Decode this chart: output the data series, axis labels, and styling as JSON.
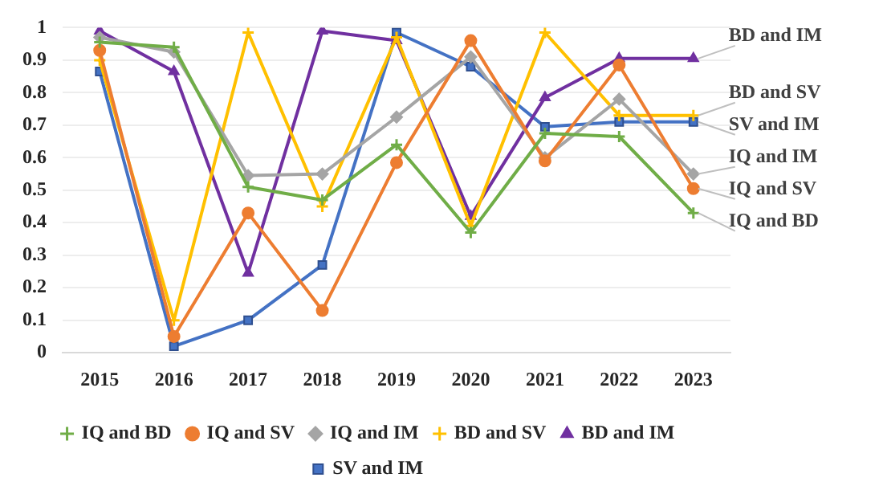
{
  "chart_data": {
    "type": "line",
    "categories": [
      "2015",
      "2016",
      "2017",
      "2018",
      "2019",
      "2020",
      "2021",
      "2022",
      "2023"
    ],
    "series": [
      {
        "name": "IQ and BD",
        "color": "#70ad47",
        "marker": "cross",
        "values": [
          0.955,
          0.94,
          0.51,
          0.47,
          0.64,
          0.37,
          0.675,
          0.665,
          0.43
        ]
      },
      {
        "name": "IQ and SV",
        "color": "#ed7d31",
        "marker": "circle",
        "values": [
          0.93,
          0.05,
          0.43,
          0.13,
          0.585,
          0.96,
          0.59,
          0.885,
          0.505
        ]
      },
      {
        "name": "IQ and IM",
        "color": "#a5a5a5",
        "marker": "diamond",
        "values": [
          0.97,
          0.925,
          0.545,
          0.55,
          0.725,
          0.91,
          0.6,
          0.78,
          0.55
        ]
      },
      {
        "name": "BD and SV",
        "color": "#ffc000",
        "marker": "cross",
        "values": [
          0.9,
          0.1,
          0.985,
          0.45,
          0.97,
          0.39,
          0.985,
          0.73,
          0.73
        ]
      },
      {
        "name": "BD and IM",
        "color": "#7030a0",
        "marker": "triangle",
        "values": [
          0.99,
          0.865,
          0.245,
          0.99,
          0.96,
          0.42,
          0.785,
          0.905,
          0.905
        ]
      },
      {
        "name": "SV and IM",
        "color": "#4472c4",
        "marker": "square",
        "values": [
          0.865,
          0.02,
          0.1,
          0.27,
          0.985,
          0.88,
          0.695,
          0.71,
          0.71
        ]
      }
    ],
    "ylim": [
      0,
      1
    ],
    "yticks": [
      0,
      0.1,
      0.2,
      0.3,
      0.4,
      0.5,
      0.6,
      0.7,
      0.8,
      0.9,
      1
    ],
    "grid": "y",
    "legend": "bottom",
    "annotations": [
      {
        "text": "BD and IM",
        "x": "2023",
        "y": 0.905
      },
      {
        "text": "BD and SV",
        "x": "2023",
        "y": 0.73
      },
      {
        "text": "SV and IM",
        "x": "2023",
        "y": 0.71
      },
      {
        "text": "IQ and IM",
        "x": "2023",
        "y": 0.55
      },
      {
        "text": "IQ and SV",
        "x": "2023",
        "y": 0.505
      },
      {
        "text": "IQ and BD",
        "x": "2023",
        "y": 0.43
      }
    ]
  }
}
